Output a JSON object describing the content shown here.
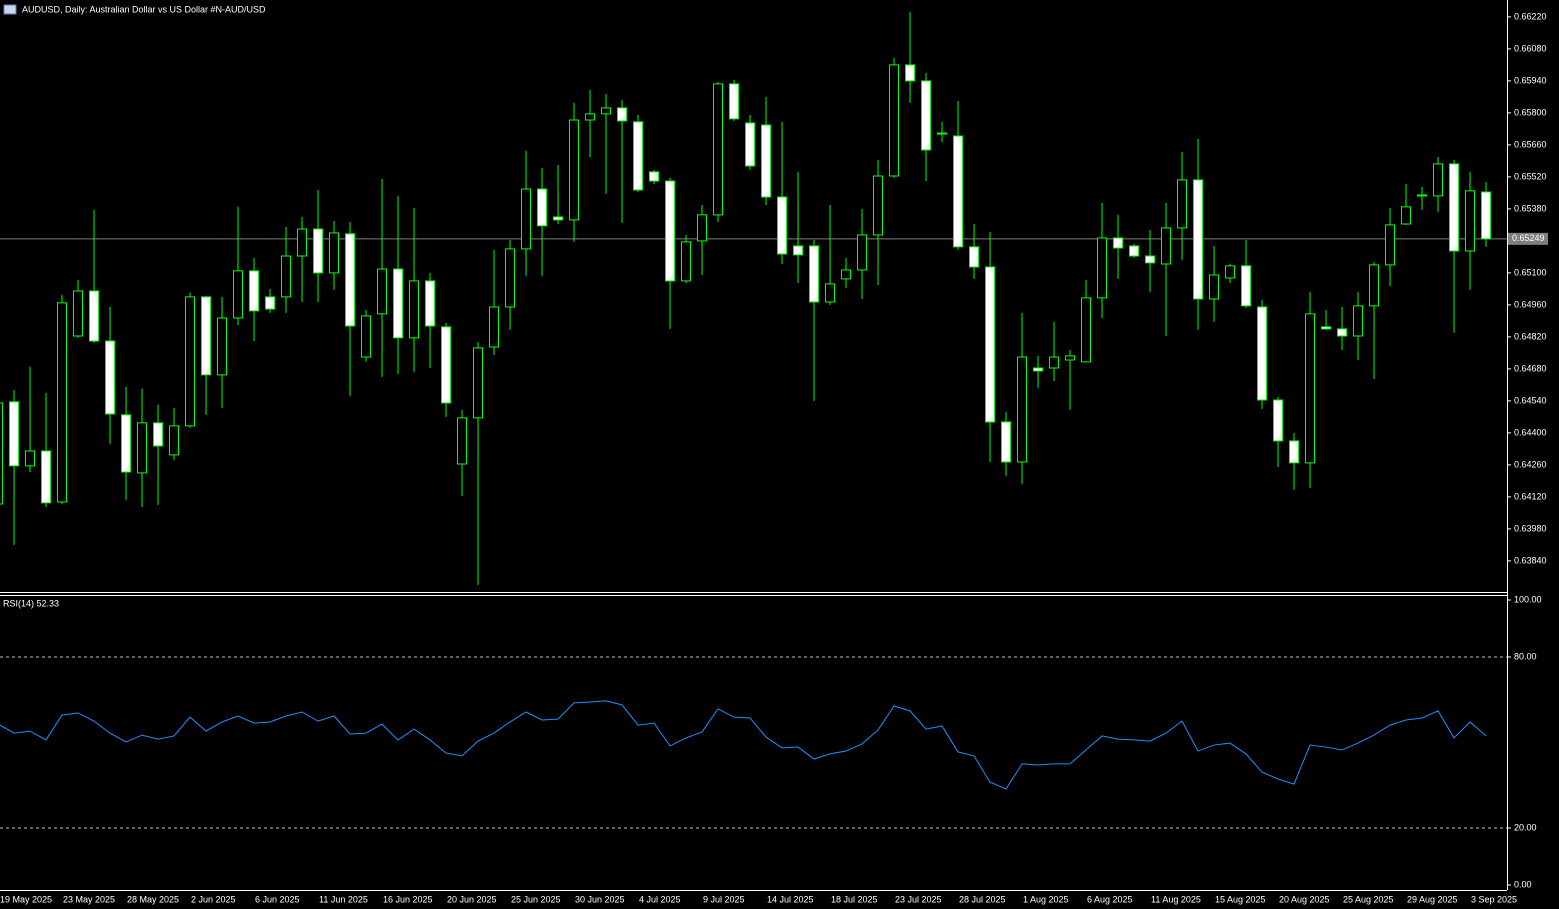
{
  "chart_data": [
    {
      "type": "candlestick",
      "title": "AUDUSD, Daily:  Australian Dollar vs US Dollar #N-AUD/USD",
      "categories": [
        "19 May 2025",
        null,
        null,
        null,
        "23 May 2025",
        null,
        null,
        null,
        "28 May 2025",
        null,
        null,
        null,
        "2 Jun 2025",
        null,
        null,
        null,
        "6 Jun 2025",
        null,
        null,
        null,
        "11 Jun 2025",
        null,
        null,
        null,
        "16 Jun 2025",
        null,
        null,
        null,
        "20 Jun 2025",
        null,
        null,
        null,
        "25 Jun 2025",
        null,
        null,
        null,
        "30 Jun 2025",
        null,
        null,
        null,
        "4 Jul 2025",
        null,
        null,
        null,
        "9 Jul 2025",
        null,
        null,
        null,
        "14 Jul 2025",
        null,
        null,
        null,
        "18 Jul 2025",
        null,
        null,
        null,
        "23 Jul 2025",
        null,
        null,
        null,
        "28 Jul 2025",
        null,
        null,
        null,
        "1 Aug 2025",
        null,
        null,
        null,
        "6 Aug 2025",
        null,
        null,
        null,
        "11 Aug 2025",
        null,
        null,
        null,
        "15 Aug 2025",
        null,
        null,
        null,
        "20 Aug 2025",
        null,
        null,
        null,
        "25 Aug 2025",
        null,
        null,
        null,
        "29 Aug 2025",
        null,
        null,
        null,
        "3 Sep 2025",
        null
      ],
      "open": [
        0.64089,
        0.64536,
        0.64256,
        0.64321,
        0.64098,
        0.64824,
        0.65021,
        0.64802,
        0.64479,
        0.64225,
        0.64444,
        0.64304,
        0.64431,
        0.64995,
        0.64654,
        0.64903,
        0.65109,
        0.64995,
        0.64995,
        0.65174,
        0.65292,
        0.651,
        0.65271,
        0.64732,
        0.64921,
        0.65117,
        0.64816,
        0.65065,
        0.64864,
        0.64264,
        0.64466,
        0.64776,
        0.64951,
        0.65205,
        0.65467,
        0.65345,
        0.65332,
        0.65769,
        0.65796,
        0.65822,
        0.65761,
        0.65542,
        0.65502,
        0.65065,
        0.6524,
        0.65354,
        0.65927,
        0.65756,
        0.65747,
        0.65432,
        0.65218,
        0.65218,
        0.64973,
        0.65074,
        0.65113,
        0.65266,
        0.65524,
        0.6601,
        0.6594,
        0.65708,
        0.65699,
        0.65214,
        0.65126,
        0.64448,
        0.64273,
        0.64684,
        0.64684,
        0.64719,
        0.64711,
        0.64991,
        0.65253,
        0.65218,
        0.65174,
        0.65139,
        0.65297,
        0.65507,
        0.64986,
        0.65078,
        0.65131,
        0.64951,
        0.64544,
        0.64365,
        0.64269,
        0.64864,
        0.64855,
        0.64824,
        0.64956,
        0.65135,
        0.65314,
        0.65437,
        0.65437,
        0.65577,
        0.65196,
        0.65454
      ],
      "high": [
        0.64566,
        0.64588,
        0.64689,
        0.64575,
        0.65004,
        0.65069,
        0.65376,
        0.64951,
        0.64601,
        0.64593,
        0.64523,
        0.64509,
        0.65013,
        0.64999,
        0.64995,
        0.65389,
        0.65166,
        0.6503,
        0.65301,
        0.65345,
        0.65463,
        0.65327,
        0.65323,
        0.64938,
        0.65511,
        0.65437,
        0.65384,
        0.651,
        0.64881,
        0.64501,
        0.64798,
        0.65201,
        0.65244,
        0.65634,
        0.65559,
        0.65572,
        0.65844,
        0.65901,
        0.65883,
        0.65857,
        0.65791,
        0.65551,
        0.65516,
        0.65266,
        0.65397,
        0.65936,
        0.65944,
        0.65791,
        0.6587,
        0.65761,
        0.65542,
        0.65244,
        0.65397,
        0.65166,
        0.6538,
        0.65594,
        0.66041,
        0.66242,
        0.65975,
        0.65761,
        0.65852,
        0.65314,
        0.65279,
        0.64492,
        0.64925,
        0.64737,
        0.64886,
        0.64763,
        0.65069,
        0.65406,
        0.65354,
        0.65227,
        0.65288,
        0.65406,
        0.65629,
        0.65686,
        0.65218,
        0.65139,
        0.65244,
        0.64982,
        0.64557,
        0.644,
        0.65017,
        0.64938,
        0.64951,
        0.65017,
        0.65148,
        0.65384,
        0.65489,
        0.65476,
        0.65607,
        0.65594,
        0.65542,
        0.65498
      ],
      "low": [
        0.64085,
        0.6391,
        0.64229,
        0.64076,
        0.64089,
        0.64816,
        0.64794,
        0.64352,
        0.64107,
        0.64076,
        0.64085,
        0.64282,
        0.64422,
        0.64479,
        0.64509,
        0.64872,
        0.64802,
        0.64925,
        0.64925,
        0.64973,
        0.64973,
        0.65026,
        0.64562,
        0.64711,
        0.64645,
        0.64658,
        0.64667,
        0.64684,
        0.6447,
        0.64124,
        0.63735,
        0.64741,
        0.64851,
        0.65087,
        0.65087,
        0.65314,
        0.65236,
        0.65607,
        0.65446,
        0.65319,
        0.65454,
        0.65489,
        0.64855,
        0.65056,
        0.65091,
        0.65323,
        0.65765,
        0.65551,
        0.65397,
        0.65139,
        0.65056,
        0.6454,
        0.6496,
        0.65034,
        0.64986,
        0.65047,
        0.65516,
        0.65844,
        0.65502,
        0.65673,
        0.65201,
        0.65074,
        0.64273,
        0.64212,
        0.64177,
        0.64597,
        0.64627,
        0.64501,
        0.64711,
        0.64903,
        0.65074,
        0.65166,
        0.65017,
        0.64824,
        0.65157,
        0.64851,
        0.64886,
        0.65056,
        0.64947,
        0.64505,
        0.64251,
        0.64151,
        0.64159,
        0.64851,
        0.64763,
        0.64719,
        0.64636,
        0.65043,
        0.6531,
        0.65376,
        0.65367,
        0.64838,
        0.65026,
        0.65214
      ],
      "close": [
        0.64531,
        0.64256,
        0.64321,
        0.64094,
        0.64969,
        0.65021,
        0.64802,
        0.64483,
        0.64229,
        0.64444,
        0.64343,
        0.64431,
        0.64995,
        0.64654,
        0.64903,
        0.65109,
        0.64934,
        0.64942,
        0.65174,
        0.65292,
        0.651,
        0.65275,
        0.64868,
        0.64912,
        0.65117,
        0.64816,
        0.65065,
        0.64868,
        0.64531,
        0.64466,
        0.64772,
        0.64951,
        0.65205,
        0.65467,
        0.65306,
        0.65332,
        0.65769,
        0.65796,
        0.65822,
        0.65765,
        0.65463,
        0.65502,
        0.65065,
        0.65236,
        0.65354,
        0.65927,
        0.65774,
        0.65568,
        0.65432,
        0.65183,
        0.65179,
        0.64973,
        0.65052,
        0.65113,
        0.65266,
        0.65524,
        0.6601,
        0.6594,
        0.65638,
        0.65712,
        0.65214,
        0.65126,
        0.64448,
        0.64273,
        0.64732,
        0.64671,
        0.64732,
        0.64737,
        0.64991,
        0.65253,
        0.65209,
        0.65174,
        0.65144,
        0.65297,
        0.65507,
        0.64986,
        0.65091,
        0.65131,
        0.64956,
        0.64544,
        0.64365,
        0.64269,
        0.64921,
        0.64855,
        0.64824,
        0.64956,
        0.65135,
        0.6531,
        0.65389,
        0.65441,
        0.65577,
        0.65196,
        0.65459,
        0.65249
      ],
      "up_color": "#000000",
      "down_color": "#ffffff",
      "outline_color": "#00ff00",
      "last_price": 0.65249,
      "ylim": [
        0.63704,
        0.66294
      ],
      "yticks": [
        {
          "value": 0.6622,
          "label": "0.66220"
        },
        {
          "value": 0.6608,
          "label": "0.66080"
        },
        {
          "value": 0.6594,
          "label": "0.65940"
        },
        {
          "value": 0.658,
          "label": "0.65800"
        },
        {
          "value": 0.6566,
          "label": "0.65660"
        },
        {
          "value": 0.6552,
          "label": "0.65520"
        },
        {
          "value": 0.6538,
          "label": "0.65380"
        },
        {
          "value": 0.6524,
          "label": "0.65240"
        },
        {
          "value": 0.651,
          "label": "0.65100"
        },
        {
          "value": 0.6496,
          "label": "0.64960"
        },
        {
          "value": 0.6482,
          "label": "0.64820"
        },
        {
          "value": 0.6468,
          "label": "0.64680"
        },
        {
          "value": 0.6454,
          "label": "0.64540"
        },
        {
          "value": 0.644,
          "label": "0.64400"
        },
        {
          "value": 0.6426,
          "label": "0.64260"
        },
        {
          "value": 0.6412,
          "label": "0.64120"
        },
        {
          "value": 0.6398,
          "label": "0.63980"
        },
        {
          "value": 0.6384,
          "label": "0.63840"
        }
      ]
    },
    {
      "type": "line",
      "title": "RSI(14) 52.33",
      "color": "#1e90ff",
      "values": [
        56.5,
        53.3,
        54,
        50.9,
        59.6,
        60.4,
        57.5,
        53.3,
        50.2,
        52.6,
        51.2,
        52.3,
        58.9,
        54,
        57.2,
        59.3,
        56.8,
        57.2,
        59.3,
        60.7,
        57.5,
        59.3,
        53,
        53.3,
        56.5,
        50.9,
        54.7,
        50.9,
        46.3,
        45.3,
        50.5,
        53.3,
        57.2,
        60.7,
        57.9,
        58.2,
        63.9,
        64.2,
        64.6,
        63.2,
        56.1,
        56.8,
        48.8,
        51.6,
        53.7,
        61.8,
        58.9,
        58.6,
        51.9,
        48.1,
        48.4,
        44.2,
        46,
        47,
        49.5,
        54.4,
        62.8,
        61.1,
        54.7,
        55.8,
        46.7,
        45.3,
        36.1,
        33.7,
        42.5,
        42.1,
        42.5,
        42.5,
        47.4,
        52.3,
        51.2,
        50.9,
        50.5,
        53.3,
        57.5,
        47,
        49.1,
        49.8,
        46,
        39.6,
        37.2,
        35.4,
        49.1,
        48.4,
        47.4,
        49.8,
        52.6,
        56.1,
        57.9,
        58.6,
        61.1,
        51.6,
        57.2,
        52.33
      ],
      "levels": [
        80,
        20
      ],
      "ylim": [
        -1.75,
        101.75
      ],
      "yticks": [
        {
          "value": 100,
          "label": "100.00"
        },
        {
          "value": 80,
          "label": "80.00"
        },
        {
          "value": 20,
          "label": "20.00"
        },
        {
          "value": 0,
          "label": "0.00"
        }
      ]
    }
  ]
}
